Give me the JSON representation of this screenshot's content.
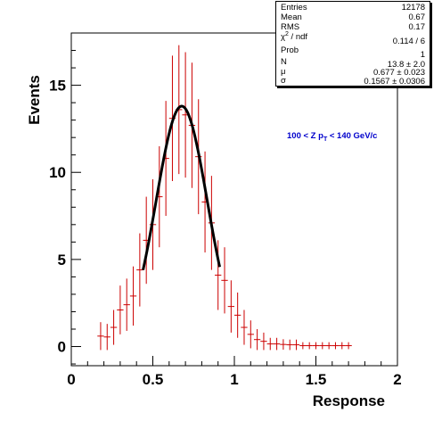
{
  "chart_data": {
    "type": "histogram",
    "xlabel": "Response",
    "ylabel": "Events",
    "xlim": [
      0,
      2
    ],
    "ylim": [
      -1.1,
      18
    ],
    "xticks": [
      "0",
      "0.5",
      "1",
      "1.5",
      "2"
    ],
    "yticks": [
      "0",
      "5",
      "10",
      "15"
    ],
    "annotation": {
      "parts": [
        "100 < Z p",
        "T",
        " < 140 GeV/c"
      ],
      "color": "#0000cc"
    },
    "series": [
      {
        "points": [
          {
            "x": 0.18,
            "y": 0.6,
            "xerr": 0.02,
            "yerr": 0.8
          },
          {
            "x": 0.22,
            "y": 0.55,
            "xerr": 0.02,
            "yerr": 0.75
          },
          {
            "x": 0.26,
            "y": 1.1,
            "xerr": 0.02,
            "yerr": 1.0
          },
          {
            "x": 0.3,
            "y": 2.1,
            "xerr": 0.02,
            "yerr": 1.4
          },
          {
            "x": 0.34,
            "y": 2.4,
            "xerr": 0.02,
            "yerr": 1.5
          },
          {
            "x": 0.38,
            "y": 2.9,
            "xerr": 0.02,
            "yerr": 1.7
          },
          {
            "x": 0.42,
            "y": 4.4,
            "xerr": 0.02,
            "yerr": 2.1
          },
          {
            "x": 0.46,
            "y": 6.1,
            "xerr": 0.02,
            "yerr": 2.5
          },
          {
            "x": 0.5,
            "y": 7.0,
            "xerr": 0.02,
            "yerr": 2.6
          },
          {
            "x": 0.54,
            "y": 8.6,
            "xerr": 0.02,
            "yerr": 2.9
          },
          {
            "x": 0.58,
            "y": 10.8,
            "xerr": 0.02,
            "yerr": 3.3
          },
          {
            "x": 0.62,
            "y": 13.1,
            "xerr": 0.02,
            "yerr": 3.6
          },
          {
            "x": 0.66,
            "y": 13.6,
            "xerr": 0.02,
            "yerr": 3.7
          },
          {
            "x": 0.7,
            "y": 13.3,
            "xerr": 0.02,
            "yerr": 3.6
          },
          {
            "x": 0.74,
            "y": 12.7,
            "xerr": 0.02,
            "yerr": 3.6
          },
          {
            "x": 0.78,
            "y": 10.9,
            "xerr": 0.02,
            "yerr": 3.3
          },
          {
            "x": 0.82,
            "y": 8.3,
            "xerr": 0.02,
            "yerr": 2.9
          },
          {
            "x": 0.86,
            "y": 7.1,
            "xerr": 0.02,
            "yerr": 2.7
          },
          {
            "x": 0.9,
            "y": 4.1,
            "xerr": 0.02,
            "yerr": 2.0
          },
          {
            "x": 0.94,
            "y": 3.8,
            "xerr": 0.02,
            "yerr": 1.9
          },
          {
            "x": 0.98,
            "y": 2.3,
            "xerr": 0.02,
            "yerr": 1.5
          },
          {
            "x": 1.02,
            "y": 1.8,
            "xerr": 0.02,
            "yerr": 1.3
          },
          {
            "x": 1.06,
            "y": 1.1,
            "xerr": 0.02,
            "yerr": 1.0
          },
          {
            "x": 1.1,
            "y": 0.7,
            "xerr": 0.02,
            "yerr": 0.8
          },
          {
            "x": 1.14,
            "y": 0.4,
            "xerr": 0.02,
            "yerr": 0.6
          },
          {
            "x": 1.18,
            "y": 0.3,
            "xerr": 0.02,
            "yerr": 0.5
          },
          {
            "x": 1.22,
            "y": 0.15,
            "xerr": 0.02,
            "yerr": 0.35
          },
          {
            "x": 1.26,
            "y": 0.15,
            "xerr": 0.02,
            "yerr": 0.35
          },
          {
            "x": 1.3,
            "y": 0.12,
            "xerr": 0.02,
            "yerr": 0.3
          },
          {
            "x": 1.34,
            "y": 0.1,
            "xerr": 0.02,
            "yerr": 0.3
          },
          {
            "x": 1.38,
            "y": 0.1,
            "xerr": 0.02,
            "yerr": 0.3
          },
          {
            "x": 1.42,
            "y": 0.05,
            "xerr": 0.02,
            "yerr": 0.2
          },
          {
            "x": 1.46,
            "y": 0.05,
            "xerr": 0.02,
            "yerr": 0.2
          },
          {
            "x": 1.5,
            "y": 0.05,
            "xerr": 0.02,
            "yerr": 0.2
          },
          {
            "x": 1.54,
            "y": 0.05,
            "xerr": 0.02,
            "yerr": 0.2
          },
          {
            "x": 1.58,
            "y": 0.05,
            "xerr": 0.02,
            "yerr": 0.2
          },
          {
            "x": 1.62,
            "y": 0.05,
            "xerr": 0.02,
            "yerr": 0.2
          },
          {
            "x": 1.66,
            "y": 0.05,
            "xerr": 0.02,
            "yerr": 0.2
          },
          {
            "x": 1.7,
            "y": 0.05,
            "xerr": 0.02,
            "yerr": 0.2
          }
        ],
        "color": "#cc0000"
      },
      {
        "type": "gaussian-fit",
        "N": 13.8,
        "mu": 0.677,
        "sigma": 0.1567,
        "x_range": [
          0.44,
          0.91
        ],
        "color": "#000000"
      }
    ],
    "stats": {
      "entries": {
        "label": "Entries",
        "value": "12178"
      },
      "mean": {
        "label": "Mean",
        "value": "0.67"
      },
      "rms": {
        "label": "RMS",
        "value": "0.17"
      },
      "chi2": {
        "label_pre": "χ",
        "label_sup": "2",
        "label_post": " / ndf",
        "value": "0.114 / 6"
      },
      "prob": {
        "label": "Prob",
        "value": "1"
      },
      "n": {
        "label": "N",
        "value": "13.8 ± 2.0"
      },
      "mu": {
        "label": "μ",
        "value": "0.677 ± 0.023"
      },
      "sigma": {
        "label": "σ",
        "value": "0.1567 ± 0.0306"
      }
    }
  }
}
